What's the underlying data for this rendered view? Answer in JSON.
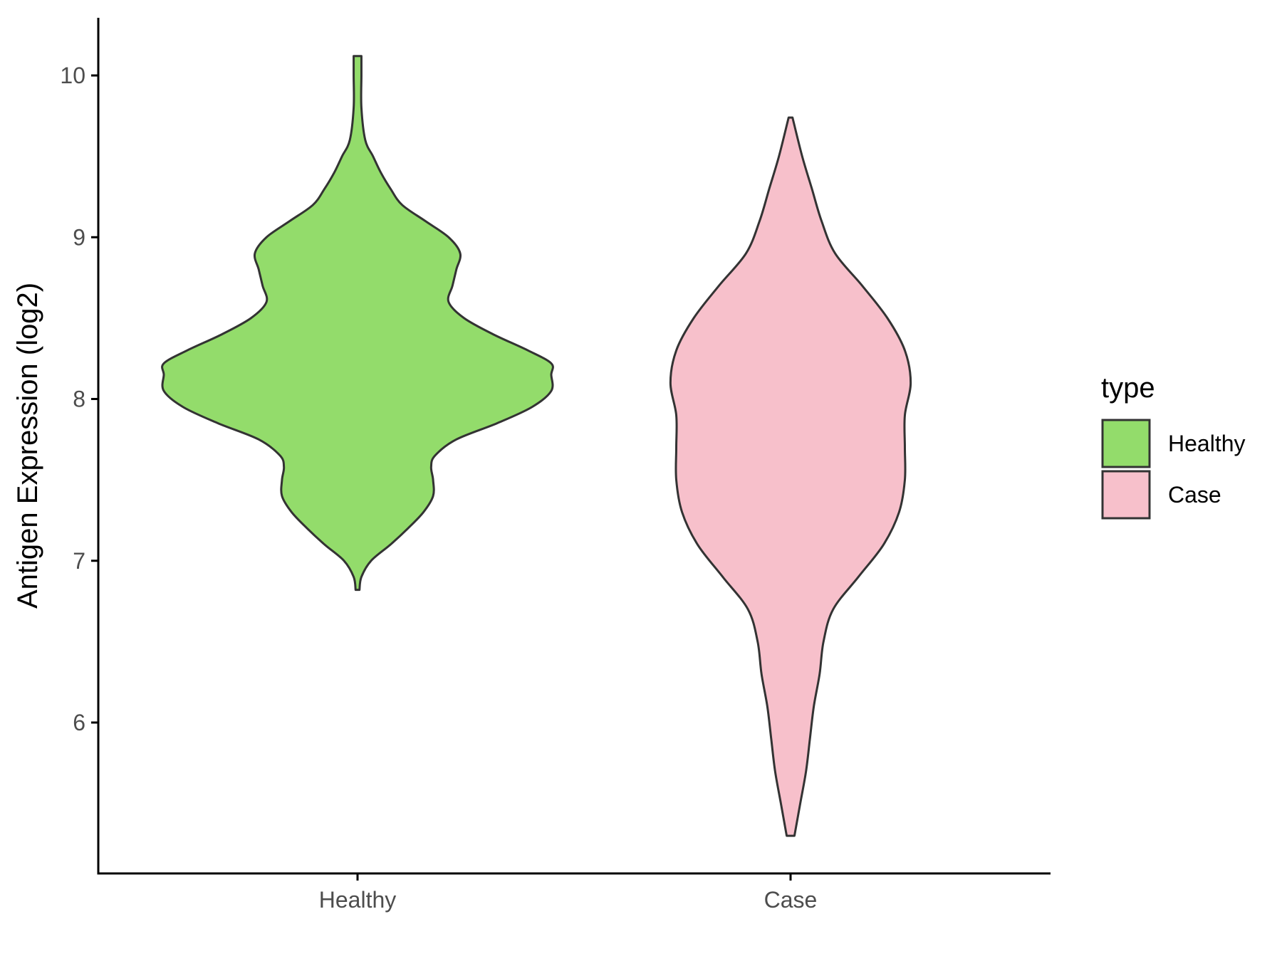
{
  "chart_data": {
    "type": "violin",
    "title": "",
    "xlabel": "",
    "ylabel": "Antigen Expression (log2)",
    "categories": [
      "Healthy",
      "Case"
    ],
    "y_ticks": [
      6,
      7,
      8,
      9,
      10
    ],
    "ylim": [
      5.1,
      10.35
    ],
    "grid": false,
    "legend": {
      "title": "type",
      "position": "right",
      "entries": [
        {
          "label": "Healthy",
          "color": "#93dc6b"
        },
        {
          "label": "Case",
          "color": "#f7c0cb"
        }
      ]
    },
    "series": [
      {
        "name": "Healthy",
        "color": "#93dc6b",
        "y_range": [
          6.82,
          10.12
        ],
        "density": [
          [
            6.82,
            0.01
          ],
          [
            6.9,
            0.02
          ],
          [
            7.0,
            0.07
          ],
          [
            7.1,
            0.17
          ],
          [
            7.2,
            0.26
          ],
          [
            7.3,
            0.34
          ],
          [
            7.4,
            0.39
          ],
          [
            7.5,
            0.39
          ],
          [
            7.58,
            0.38
          ],
          [
            7.65,
            0.4
          ],
          [
            7.75,
            0.51
          ],
          [
            7.85,
            0.72
          ],
          [
            7.95,
            0.9
          ],
          [
            8.05,
            1.0
          ],
          [
            8.15,
            1.0
          ],
          [
            8.22,
            1.0
          ],
          [
            8.3,
            0.88
          ],
          [
            8.4,
            0.7
          ],
          [
            8.5,
            0.55
          ],
          [
            8.6,
            0.47
          ],
          [
            8.7,
            0.49
          ],
          [
            8.8,
            0.51
          ],
          [
            8.9,
            0.53
          ],
          [
            9.0,
            0.47
          ],
          [
            9.1,
            0.35
          ],
          [
            9.2,
            0.23
          ],
          [
            9.3,
            0.17
          ],
          [
            9.4,
            0.12
          ],
          [
            9.5,
            0.08
          ],
          [
            9.6,
            0.04
          ],
          [
            9.8,
            0.02
          ],
          [
            10.0,
            0.02
          ],
          [
            10.12,
            0.02
          ]
        ]
      },
      {
        "name": "Case",
        "color": "#f7c0cb",
        "y_range": [
          5.3,
          9.74
        ],
        "density": [
          [
            5.3,
            0.02
          ],
          [
            5.5,
            0.05
          ],
          [
            5.7,
            0.08
          ],
          [
            5.9,
            0.1
          ],
          [
            6.1,
            0.12
          ],
          [
            6.3,
            0.15
          ],
          [
            6.5,
            0.17
          ],
          [
            6.7,
            0.22
          ],
          [
            6.9,
            0.35
          ],
          [
            7.1,
            0.48
          ],
          [
            7.3,
            0.56
          ],
          [
            7.5,
            0.59
          ],
          [
            7.7,
            0.59
          ],
          [
            7.9,
            0.59
          ],
          [
            8.1,
            0.62
          ],
          [
            8.3,
            0.59
          ],
          [
            8.5,
            0.5
          ],
          [
            8.7,
            0.37
          ],
          [
            8.9,
            0.23
          ],
          [
            9.1,
            0.16
          ],
          [
            9.3,
            0.11
          ],
          [
            9.5,
            0.06
          ],
          [
            9.74,
            0.01
          ]
        ]
      }
    ]
  }
}
